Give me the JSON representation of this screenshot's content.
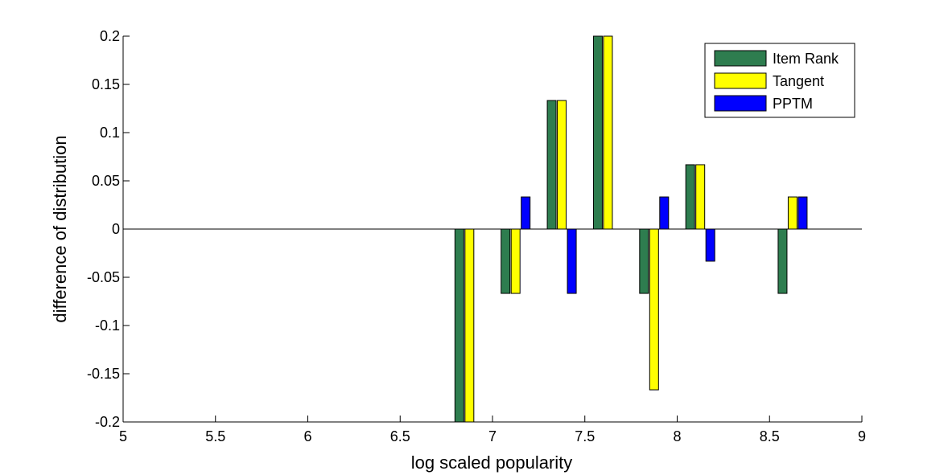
{
  "chart_data": {
    "type": "bar",
    "title": "",
    "xlabel": "log scaled popularity",
    "ylabel": "difference of distribution",
    "xlim": [
      5,
      9
    ],
    "ylim": [
      -0.2,
      0.2
    ],
    "x_ticks": [
      "5",
      "5.5",
      "6",
      "6.5",
      "7",
      "7.5",
      "8",
      "8.5",
      "9"
    ],
    "y_ticks": [
      "-0.2",
      "-0.15",
      "-0.1",
      "-0.05",
      "0",
      "0.05",
      "0.1",
      "0.15",
      "0.2"
    ],
    "x": [
      6.875,
      7.125,
      7.375,
      7.625,
      7.875,
      8.125,
      8.375,
      8.625
    ],
    "series": [
      {
        "name": "Item Rank",
        "color": "#2e7d4f",
        "values": [
          -0.2,
          -0.0667,
          0.1333,
          0.2,
          -0.0667,
          0.0667,
          0,
          -0.0667
        ]
      },
      {
        "name": "Tangent",
        "color": "#ffff00",
        "values": [
          -0.2,
          -0.0667,
          0.1333,
          0.2,
          -0.1667,
          0.0667,
          0,
          0.0333
        ]
      },
      {
        "name": "PPTM",
        "color": "#0000ff",
        "values": [
          0,
          0.0333,
          -0.0667,
          0,
          0.0333,
          -0.0333,
          0,
          0.0333
        ]
      }
    ],
    "grid": false,
    "legend_position": "top-right"
  }
}
